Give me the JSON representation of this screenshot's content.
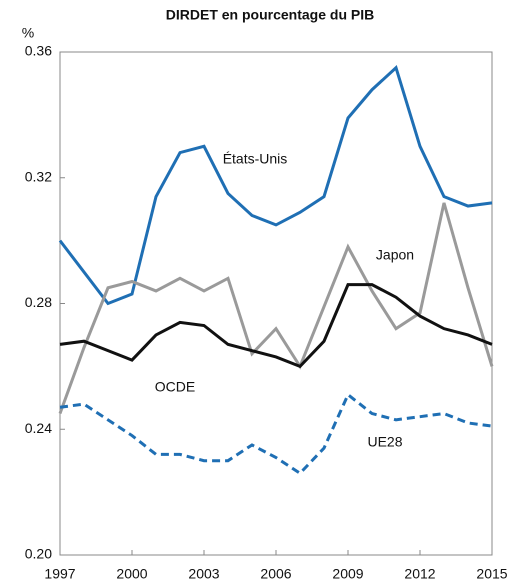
{
  "chart_data": {
    "type": "line",
    "title": "DIRDET en pourcentage du PIB",
    "y_label": "%",
    "x": [
      1997,
      1998,
      1999,
      2000,
      2001,
      2002,
      2003,
      2004,
      2005,
      2006,
      2007,
      2008,
      2009,
      2010,
      2011,
      2012,
      2013,
      2014,
      2015
    ],
    "xlim": [
      1997,
      2015
    ],
    "xticks": [
      1997,
      2000,
      2003,
      2006,
      2009,
      2012,
      2015
    ],
    "ylim": [
      0.2,
      0.36
    ],
    "yticks": [
      {
        "value": 0.2,
        "label": "0.20"
      },
      0.24,
      0.28,
      0.32,
      0.36
    ],
    "series": [
      {
        "name": "États-Unis",
        "color": "#1f6fb4",
        "dashed": false,
        "values": [
          0.3,
          0.29,
          0.28,
          0.283,
          0.314,
          0.328,
          0.33,
          0.315,
          0.308,
          0.305,
          0.309,
          0.314,
          0.339,
          0.348,
          0.355,
          0.33,
          0.314,
          0.311,
          0.312
        ]
      },
      {
        "name": "Japon",
        "color": "#9a9a9a",
        "dashed": false,
        "values": [
          0.245,
          0.266,
          0.285,
          0.287,
          0.284,
          0.288,
          0.284,
          0.288,
          0.264,
          0.272,
          0.26,
          0.279,
          0.298,
          0.284,
          0.272,
          0.277,
          0.312,
          0.285,
          0.26
        ]
      },
      {
        "name": "OCDE",
        "color": "#111111",
        "dashed": false,
        "values": [
          0.267,
          0.268,
          0.265,
          0.262,
          0.27,
          0.274,
          0.273,
          0.267,
          0.265,
          0.263,
          0.26,
          0.268,
          0.286,
          0.286,
          0.282,
          0.276,
          0.272,
          0.27,
          0.267
        ]
      },
      {
        "name": "UE28",
        "color": "#1f6fb4",
        "dashed": true,
        "values": [
          0.247,
          0.248,
          0.243,
          0.238,
          0.232,
          0.232,
          0.23,
          0.23,
          0.235,
          0.231,
          0.226,
          0.234,
          0.251,
          0.245,
          0.243,
          0.244,
          0.245,
          0.242,
          0.241
        ]
      }
    ]
  }
}
